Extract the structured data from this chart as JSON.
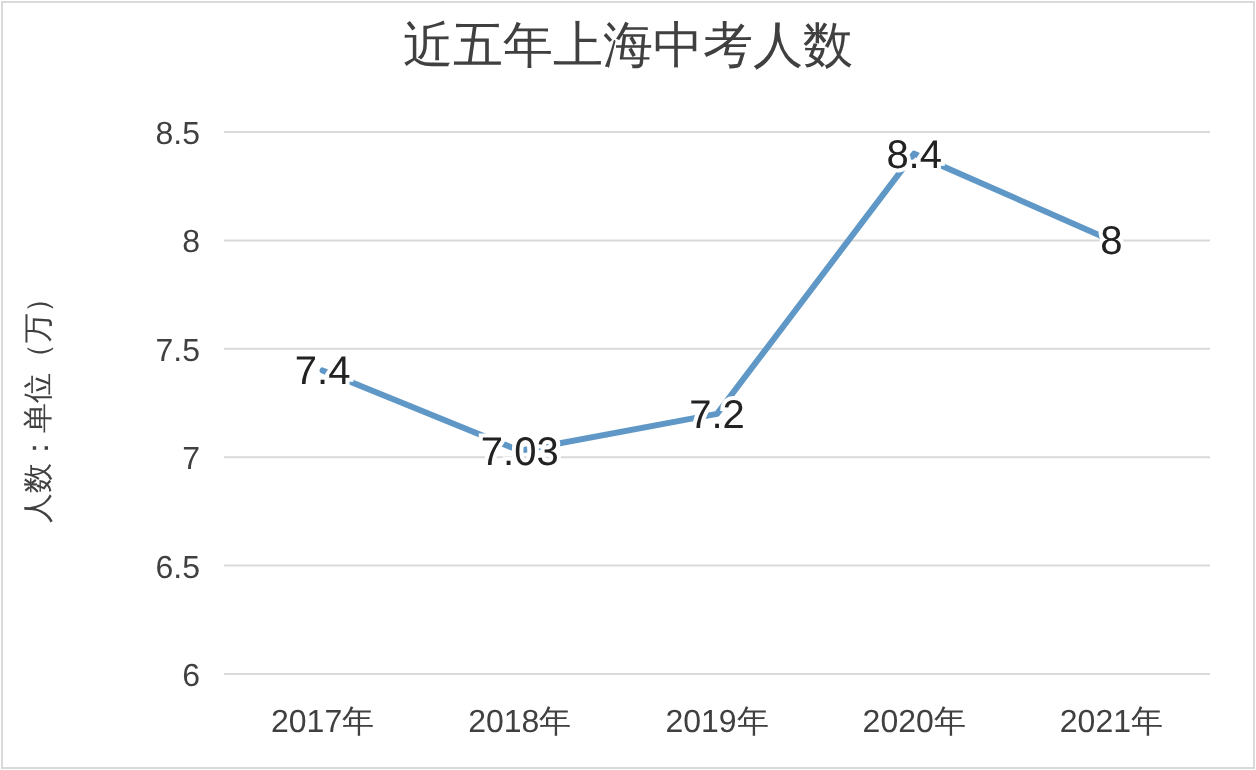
{
  "chart_data": {
    "type": "line",
    "title": "近五年上海中考人数",
    "ylabel": "人数：单位（万）",
    "categories": [
      "2017年",
      "2018年",
      "2019年",
      "2020年",
      "2021年"
    ],
    "series": [
      {
        "color": "#5f98c6",
        "values": [
          7.4,
          7.03,
          7.2,
          8.4,
          8
        ]
      }
    ],
    "ylim": [
      6,
      8.5
    ],
    "yticks": [
      6,
      6.5,
      7,
      7.5,
      8,
      8.5
    ],
    "grid": "y",
    "data_labels": true,
    "marker": "none",
    "line_style": "solid"
  }
}
